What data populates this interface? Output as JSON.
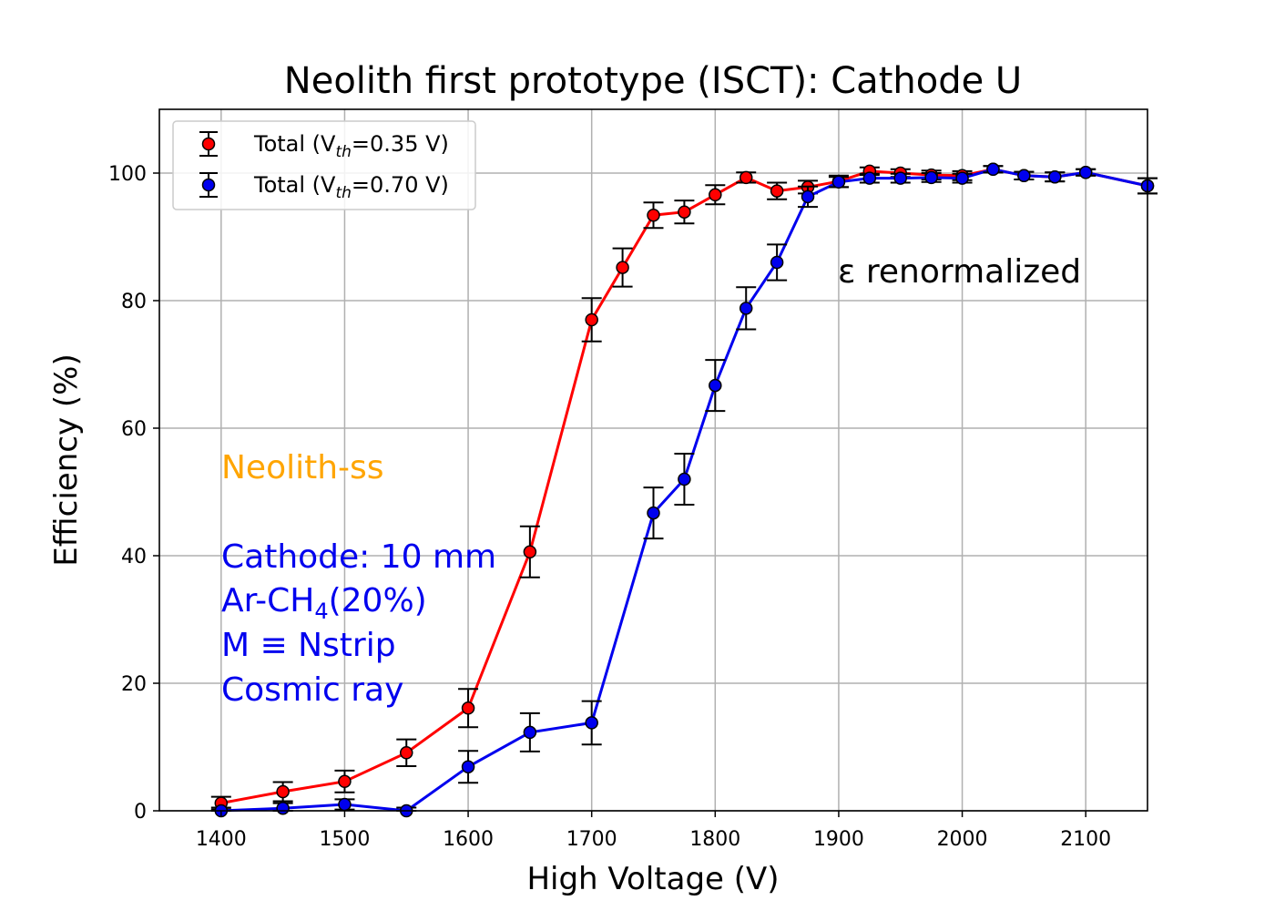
{
  "chart_data": {
    "type": "line",
    "title": "Neolith first prototype (ISCT): Cathode U",
    "xlabel": "High Voltage (V)",
    "ylabel": "Efficiency (%)",
    "xlim": [
      1350,
      2150
    ],
    "ylim": [
      0,
      110
    ],
    "x_ticks": [
      1400,
      1500,
      1600,
      1700,
      1800,
      1900,
      2000,
      2100
    ],
    "y_ticks": [
      0,
      20,
      40,
      60,
      80,
      100
    ],
    "grid": true,
    "legend_position": "top-left",
    "series": [
      {
        "name": "Total (V_th=0.35 V)",
        "legend_prefix": "Total (V",
        "legend_sub": "th",
        "legend_suffix": "=0.35 V)",
        "color": "#ff0000",
        "marker_fill": "#ff0000",
        "x": [
          1400,
          1450,
          1500,
          1550,
          1600,
          1650,
          1700,
          1725,
          1750,
          1775,
          1800,
          1825,
          1850,
          1875,
          1900,
          1925,
          1950,
          1975,
          2000,
          2025,
          2050,
          2075,
          2100,
          2150
        ],
        "y": [
          1.2,
          3.0,
          4.6,
          9.1,
          16.1,
          40.6,
          77.0,
          85.2,
          93.4,
          93.9,
          96.6,
          99.3,
          97.2,
          97.8,
          98.7,
          100.3,
          100.0,
          99.7,
          99.6,
          100.6,
          99.6,
          99.4,
          100.1,
          98.0
        ],
        "err": [
          1.0,
          1.5,
          1.7,
          2.1,
          3.0,
          4.0,
          3.4,
          3.0,
          2.0,
          1.8,
          1.5,
          0.8,
          1.3,
          1.0,
          0.9,
          0.6,
          0.6,
          0.7,
          0.7,
          0.5,
          0.6,
          0.7,
          0.5,
          1.2
        ]
      },
      {
        "name": "Total (V_th=0.70 V)",
        "legend_prefix": "Total (V",
        "legend_sub": "th",
        "legend_suffix": "=0.70 V)",
        "color": "#0000ee",
        "marker_fill": "#0000ee",
        "x": [
          1400,
          1450,
          1500,
          1550,
          1600,
          1650,
          1700,
          1750,
          1775,
          1800,
          1825,
          1850,
          1875,
          1900,
          1925,
          1950,
          1975,
          2000,
          2025,
          2050,
          2075,
          2100,
          2150
        ],
        "y": [
          0.0,
          0.4,
          1.0,
          0.0,
          6.9,
          12.3,
          13.8,
          46.7,
          52.0,
          66.7,
          78.8,
          86.0,
          96.3,
          98.6,
          99.2,
          99.2,
          99.3,
          99.2,
          100.6,
          99.6,
          99.4,
          100.1,
          98.0
        ],
        "err": [
          0.5,
          0.8,
          0.8,
          0.5,
          2.5,
          3.0,
          3.4,
          4.0,
          4.0,
          4.0,
          3.3,
          2.8,
          1.6,
          0.8,
          0.7,
          0.7,
          0.7,
          0.7,
          0.5,
          0.6,
          0.7,
          0.5,
          1.2
        ]
      }
    ],
    "annotations": {
      "renormalized": "ε renormalized",
      "detector": "Neolith-ss",
      "cathode": "Cathode: 10 mm",
      "gas_prefix": "Ar-CH",
      "gas_sub": "4",
      "gas_suffix": "(20%)",
      "multiplicity": "M ≡ Nstrip",
      "source": "Cosmic ray"
    },
    "colors": {
      "detector_text": "#ffa500",
      "info_text": "#0000ee",
      "grid": "#b0b0b0"
    }
  }
}
